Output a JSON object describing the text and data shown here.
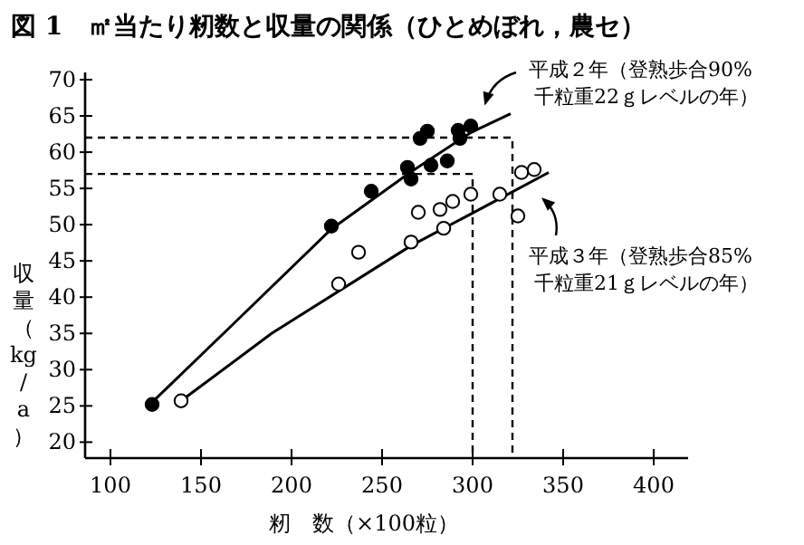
{
  "chart_data": {
    "type": "scatter",
    "title": "図 1　㎡当たり籾数と収量の関係（ひとめぼれ，農セ）",
    "xlabel": "籾　数（×100粒）",
    "ylabel": "収量（kg/a）",
    "xlim": [
      86,
      419
    ],
    "ylim": [
      17.8,
      71
    ],
    "xticks": [
      100,
      150,
      200,
      250,
      300,
      350,
      400
    ],
    "yticks": [
      20,
      25,
      30,
      35,
      40,
      45,
      50,
      55,
      60,
      65,
      70
    ],
    "grid": false,
    "series": [
      {
        "color": "#000000",
        "marker": "circle",
        "x": [
          123,
          222,
          244,
          264,
          266,
          271,
          275,
          277,
          286,
          292,
          293,
          299
        ],
        "values": [
          25.2,
          49.8,
          54.6,
          57.9,
          56.3,
          61.9,
          62.9,
          58.2,
          58.8,
          63.0,
          61.9,
          63.6
        ]
      },
      {
        "color": "#ffffff",
        "marker": "circle",
        "x": [
          139,
          226,
          237,
          266,
          270,
          282,
          284,
          289,
          299,
          315,
          325,
          327,
          334
        ],
        "values": [
          25.7,
          41.8,
          46.2,
          47.6,
          51.7,
          52.1,
          49.5,
          53.2,
          54.2,
          54.2,
          51.2,
          57.2,
          57.6
        ]
      },
      {
        "type": "line",
        "color": "#000000",
        "marker": "none",
        "line_style": "solid",
        "x": [
          123,
          167,
          222,
          266,
          299,
          321
        ],
        "values": [
          25.5,
          36.1,
          49.4,
          57.3,
          62.7,
          65.3
        ]
      },
      {
        "type": "line",
        "color": "#000000",
        "marker": "none",
        "line_style": "solid",
        "x": [
          139,
          189,
          266,
          315,
          342
        ],
        "values": [
          25.7,
          35.0,
          47.1,
          53.6,
          57.2
        ]
      },
      {
        "type": "line",
        "color": "#000000",
        "marker": "none",
        "line_style": "dashed",
        "x": [
          86,
          322,
          322
        ],
        "values": [
          62,
          62,
          17.8
        ]
      },
      {
        "type": "line",
        "color": "#000000",
        "marker": "none",
        "line_style": "dashed",
        "x": [
          86,
          300,
          300
        ],
        "values": [
          57,
          57,
          17.8
        ]
      }
    ],
    "annotations": [
      "平成２年（登熟歩合90%\n千粒重22ｇレベルの年）",
      "平成３年（登熟歩合85%\n千粒重21ｇレベルの年）"
    ]
  }
}
